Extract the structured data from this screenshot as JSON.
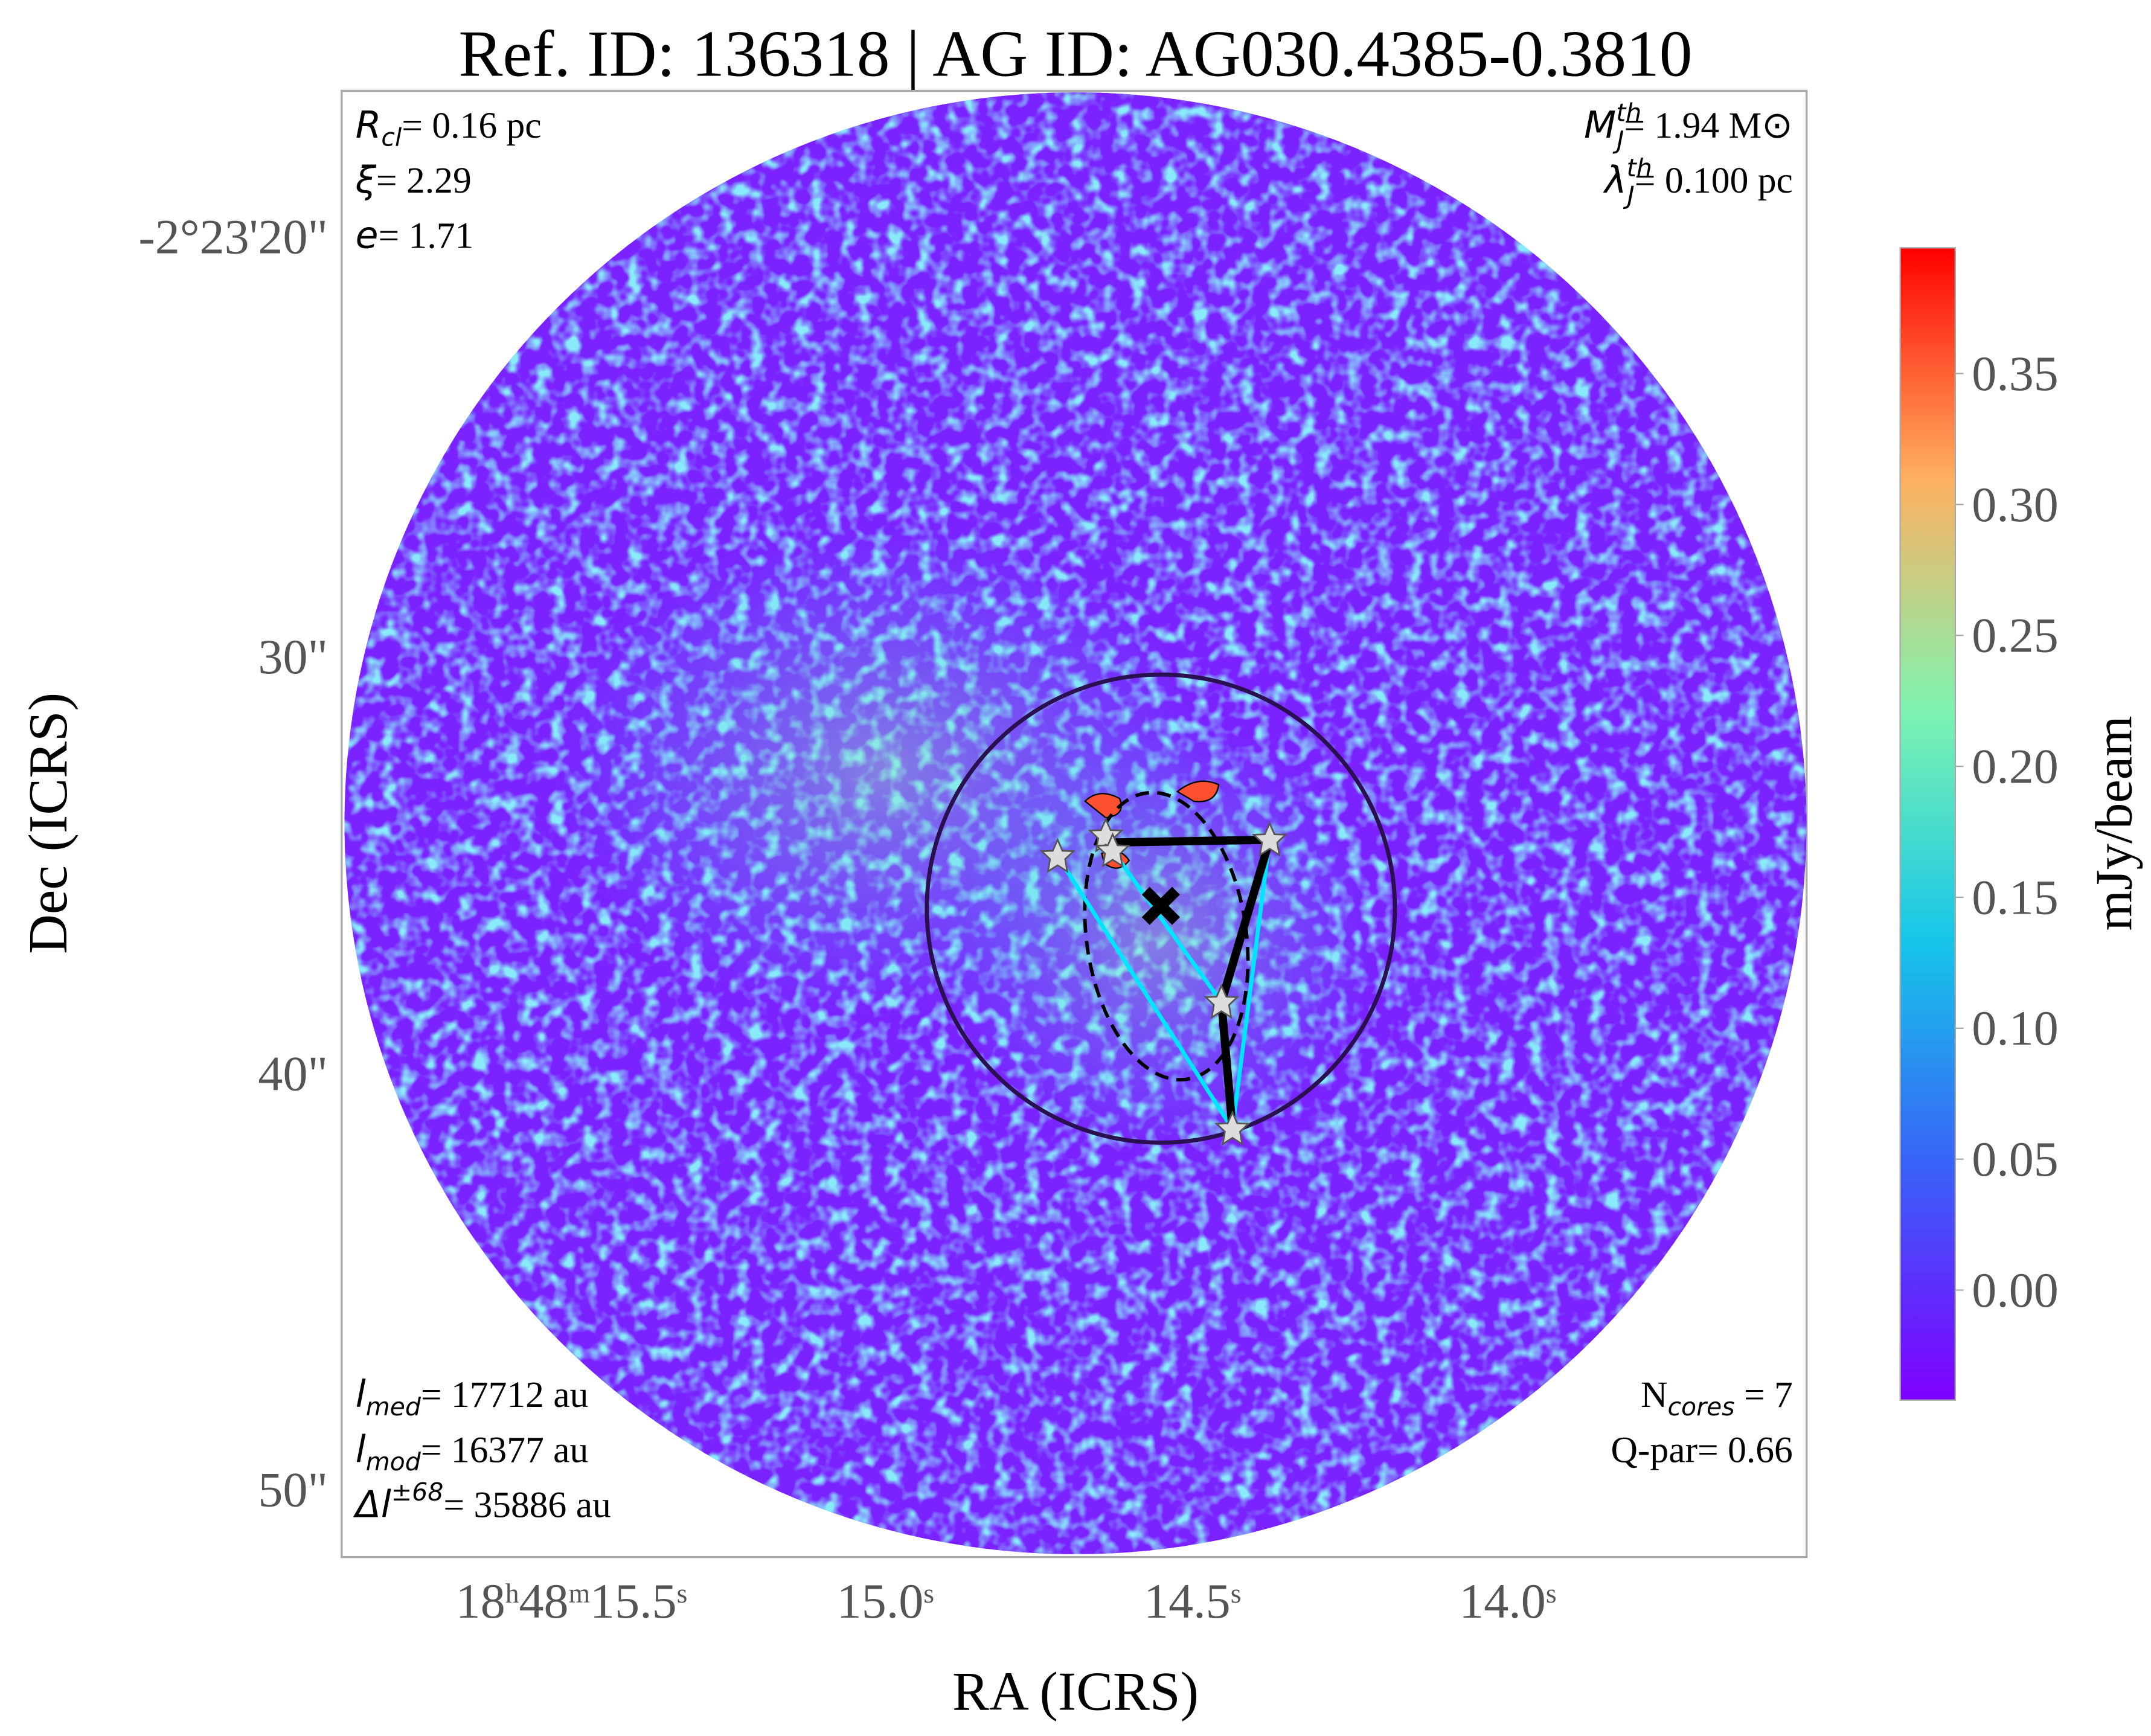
{
  "chart_data": {
    "type": "image",
    "title": "Ref. ID: 136318 | AG ID: AG030.4385-0.3810",
    "xlabel": "RA (ICRS)",
    "ylabel": "Dec (ICRS)",
    "xtick_labels": [
      [
        "18",
        "h",
        "48",
        "m",
        "15.5",
        "s"
      ],
      [
        "15.0",
        "s"
      ],
      [
        "14.5",
        "s"
      ],
      [
        "14.0",
        "s"
      ]
    ],
    "ytick_labels": [
      "-2°23'20\"",
      "30\"",
      "40\"",
      "50\""
    ],
    "colorbar": {
      "label": "mJy/beam",
      "lim": [
        -0.042,
        0.398
      ],
      "ticks": [
        {
          "value": 0,
          "label": "0.00"
        },
        {
          "value": 0.05,
          "label": "0.05"
        },
        {
          "value": 0.1,
          "label": "0.10"
        },
        {
          "value": 0.15,
          "label": "0.15"
        },
        {
          "value": 0.2,
          "label": "0.20"
        },
        {
          "value": 0.25,
          "label": "0.25"
        },
        {
          "value": 0.3,
          "label": "0.30"
        },
        {
          "value": 0.35,
          "label": "0.35"
        }
      ]
    },
    "annotations": {
      "top_left": [
        {
          "sym": "R",
          "sub": "cl",
          "rest": "= 0.16 pc"
        },
        {
          "sym": "ξ",
          "rest": "= 2.29"
        },
        {
          "sym": "e",
          "rest": "= 1.71"
        }
      ],
      "top_right": [
        {
          "sym": "M",
          "sup": "th",
          "sub": "J",
          "rest": "= 1.94 M⊙"
        },
        {
          "sym": "λ",
          "sup": "th",
          "sub": "J",
          "rest": "= 0.100 pc"
        }
      ],
      "bottom_left": [
        {
          "sym": "l",
          "sub": "med",
          "rest": "= 17712 au"
        },
        {
          "sym": "l",
          "sub": "mod",
          "rest": "= 16377 au"
        },
        {
          "sym": "Δl",
          "sup": "±68",
          "rest": "= 35886 au"
        }
      ],
      "bottom_right": [
        {
          "sym": "N",
          "sub": "cores",
          "rest": " = 7"
        },
        {
          "sym": "Q-par",
          "rest": "= 0.66"
        }
      ]
    }
  }
}
